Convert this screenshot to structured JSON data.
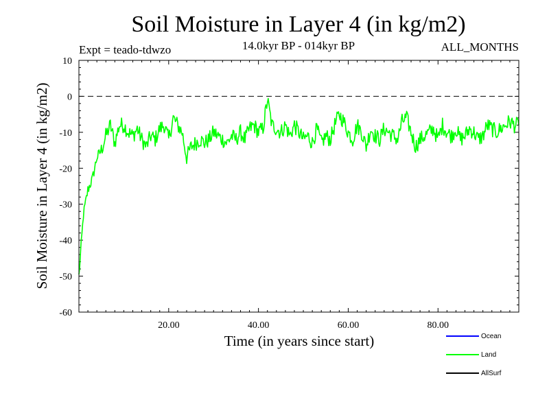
{
  "chart_data": {
    "type": "line",
    "title": "Soil Moisture in Layer 4 (in kg/m2)",
    "subtitle": "14.0kyr BP - 014kyr BP",
    "experiment": "Expt = teado-tdwzo",
    "months": "ALL_MONTHS",
    "xlabel": "Time (in years since start)",
    "ylabel": "Soil Moisture in Layer 4 (in kg/m2)",
    "xlim": [
      0,
      98
    ],
    "ylim": [
      -60,
      10
    ],
    "xticks": [
      20,
      40,
      60,
      80
    ],
    "xtick_labels": [
      "20.00",
      "40.00",
      "60.00",
      "80.00"
    ],
    "yticks": [
      10,
      0,
      -10,
      -20,
      -30,
      -40,
      -50,
      -60
    ],
    "ytick_labels": [
      "10",
      "0",
      "-10",
      "-20",
      "-30",
      "-40",
      "-50",
      "-60"
    ],
    "reference_line": 0,
    "grid": false,
    "legend": [
      {
        "name": "Ocean",
        "color": "#0000ff"
      },
      {
        "name": "Land",
        "color": "#00ff00"
      },
      {
        "name": "AllSurf",
        "color": "#000000"
      }
    ],
    "series": [
      {
        "name": "Land",
        "color": "#00ff00",
        "x": [
          0,
          1,
          2,
          3,
          4,
          5,
          6,
          7,
          8,
          9,
          10,
          11,
          12,
          13,
          14,
          15,
          16,
          17,
          18,
          19,
          20,
          21,
          22,
          23,
          24,
          25,
          26,
          27,
          28,
          29,
          30,
          31,
          32,
          33,
          34,
          35,
          36,
          37,
          38,
          39,
          40,
          41,
          42,
          43,
          44,
          45,
          46,
          47,
          48,
          49,
          50,
          51,
          52,
          53,
          54,
          55,
          56,
          57,
          58,
          59,
          60,
          61,
          62,
          63,
          64,
          65,
          66,
          67,
          68,
          69,
          70,
          71,
          72,
          73,
          74,
          75,
          76,
          77,
          78,
          79,
          80,
          81,
          82,
          83,
          84,
          85,
          86,
          87,
          88,
          89,
          90,
          91,
          92,
          93,
          94,
          95,
          96,
          97,
          98
        ],
        "values": [
          -50,
          -33,
          -26,
          -23,
          -17,
          -15,
          -11,
          -8,
          -13,
          -8,
          -8,
          -10,
          -11,
          -9,
          -12,
          -14,
          -11,
          -12,
          -9,
          -8,
          -12,
          -6,
          -8,
          -10,
          -17,
          -14,
          -13,
          -12,
          -13,
          -12,
          -10,
          -11,
          -12,
          -13,
          -11,
          -12,
          -10,
          -12,
          -9,
          -8,
          -10,
          -9,
          -1,
          -8,
          -9,
          -10,
          -8,
          -11,
          -8,
          -10,
          -12,
          -11,
          -13,
          -9,
          -13,
          -11,
          -12,
          -8,
          -5,
          -7,
          -10,
          -12,
          -8,
          -10,
          -14,
          -9,
          -11,
          -12,
          -9,
          -10,
          -11,
          -12,
          -7,
          -6,
          -10,
          -14,
          -12,
          -11,
          -10,
          -9,
          -12,
          -8,
          -10,
          -11,
          -9,
          -12,
          -11,
          -9,
          -10,
          -12,
          -11,
          -8,
          -9,
          -10,
          -9,
          -8,
          -7,
          -8,
          -8
        ]
      }
    ]
  }
}
